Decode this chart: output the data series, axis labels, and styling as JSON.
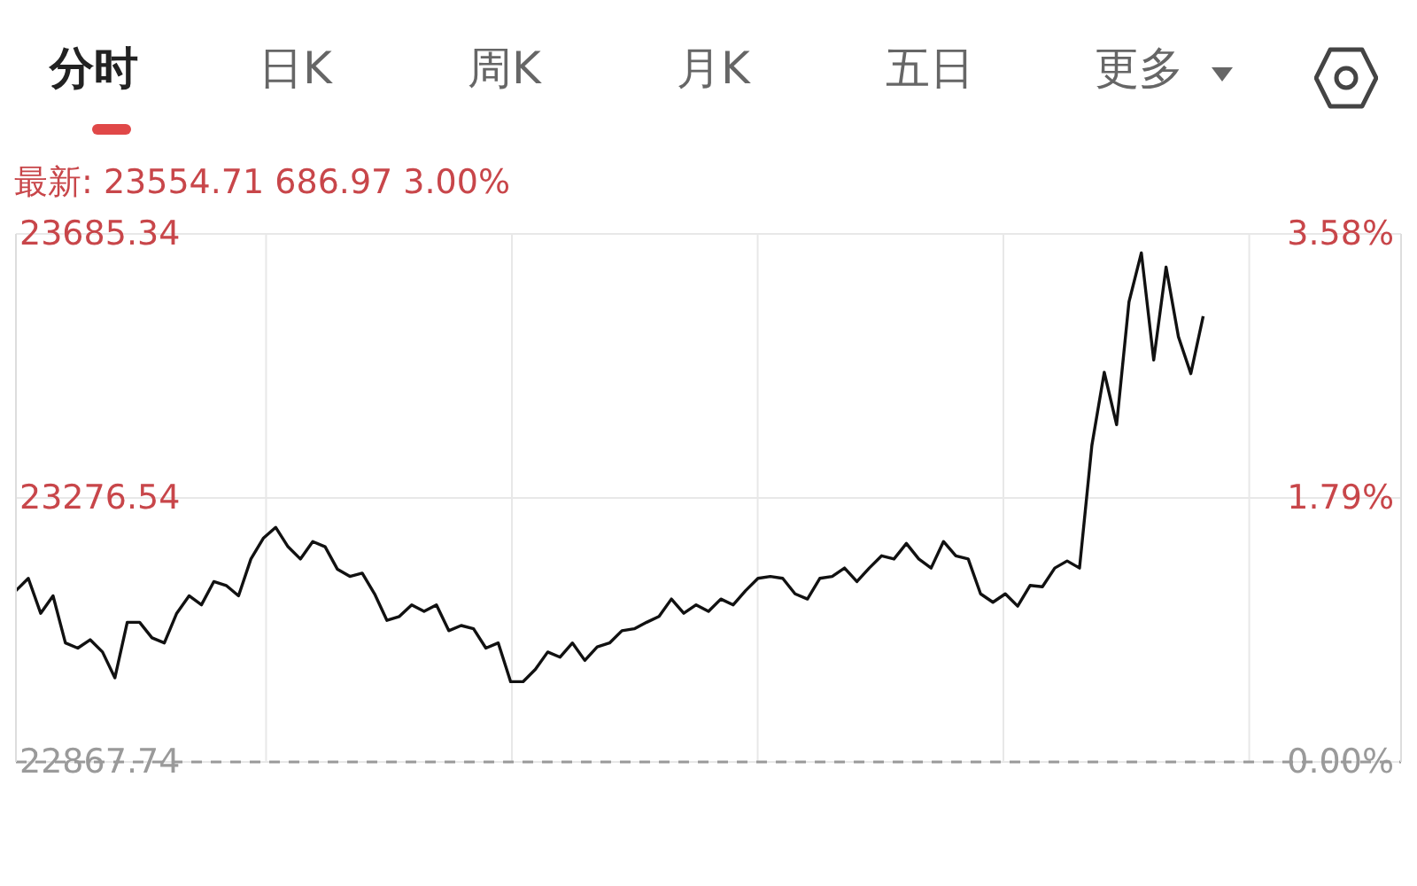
{
  "chart_data": {
    "type": "line",
    "annotations": [
      "分时",
      "日K",
      "周K",
      "月K",
      "五日",
      "更多",
      "最新: 23554.71 686.97 3.00%"
    ],
    "categories": [
      null,
      null,
      null,
      null,
      null,
      null,
      null,
      null,
      null,
      null,
      null,
      null,
      null,
      null,
      null,
      null,
      null,
      null,
      null,
      null,
      null,
      null,
      null,
      null,
      null,
      null,
      null,
      null,
      null,
      null,
      null,
      null,
      null,
      null,
      null,
      null,
      null,
      null,
      null,
      null,
      null,
      null,
      null,
      null,
      null,
      null,
      null,
      null,
      null,
      null,
      null,
      null,
      null,
      null,
      null,
      null,
      null,
      null,
      null,
      null,
      null,
      null,
      null,
      null,
      null,
      null,
      null,
      null,
      null,
      null,
      null,
      null,
      null,
      null,
      null,
      null,
      null,
      null,
      null,
      null,
      null,
      null,
      null,
      null,
      null,
      null,
      null,
      null,
      null,
      null,
      null,
      null,
      null,
      null,
      null,
      null,
      null,
      null,
      null,
      null,
      null,
      null,
      null,
      null,
      null,
      null,
      null,
      null,
      null,
      null,
      null,
      null,
      null
    ],
    "series": [
      {
        "type": "line",
        "color": "#111111",
        "values": [
          23133,
          23152,
          23098,
          23125,
          23052,
          23044,
          23057,
          23038,
          22998,
          23084,
          23084,
          23060,
          23052,
          23098,
          23125,
          23111,
          23147,
          23141,
          23125,
          23182,
          23214,
          23231,
          23201,
          23182,
          23209,
          23201,
          23166,
          23155,
          23160,
          23128,
          23087,
          23093,
          23111,
          23101,
          23111,
          23071,
          23079,
          23074,
          23044,
          23052,
          22992,
          22992,
          23011,
          23038,
          23030,
          23052,
          23025,
          23046,
          23052,
          23071,
          23074,
          23084,
          23093,
          23120,
          23098,
          23111,
          23101,
          23120,
          23111,
          23133,
          23152,
          23155,
          23152,
          23128,
          23120,
          23152,
          23155,
          23168,
          23147,
          23168,
          23187,
          23182,
          23206,
          23182,
          23168,
          23209,
          23187,
          23182,
          23128,
          23115,
          23128,
          23109,
          23141,
          23139,
          23168,
          23179,
          23168,
          23358,
          23471,
          23390,
          23580,
          23656,
          23490,
          23634,
          23526,
          23469,
          23558,
          null,
          null,
          null,
          null,
          null,
          null,
          null,
          null,
          null,
          null,
          null,
          null,
          null,
          null,
          null,
          null
        ]
      }
    ],
    "ylim": [
      22867.74,
      23685.34
    ],
    "yticks": [
      22867.74,
      23276.54,
      23685.34
    ],
    "y2lim": [
      0,
      3.58
    ],
    "y2ticks": [
      {
        "value": 0,
        "label": "0.00%"
      },
      {
        "value": 1.79,
        "label": "1.79%"
      },
      {
        "value": 3.58,
        "label": "3.58%"
      }
    ],
    "ref_lines": [
      {
        "axis": "y",
        "value": 22867.74,
        "line_style": "dashed",
        "color": "#9a9a9a"
      }
    ],
    "grid": true,
    "tick_labels": "y"
  }
}
